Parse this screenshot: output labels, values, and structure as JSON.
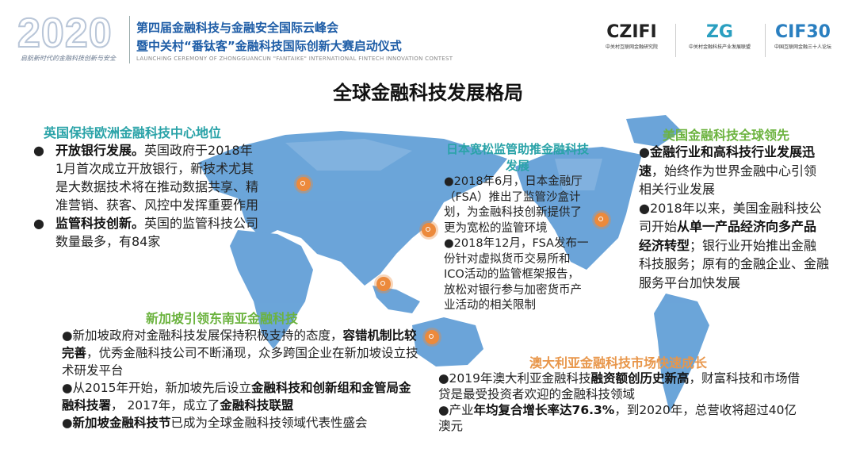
{
  "header": {
    "year_logo": "2020",
    "slogan": "启航新时代的金融科技创新与安全",
    "title_line1": "第四届金融科技与金融安全国际云峰会",
    "title_line2": "暨中关村“番钛客”金融科技国际创新大赛启动仪式",
    "subtitle_en": "LAUNCHING CEREMONY OF ZHONGGUANCUN \"FANTAIKE\" INTERNATIONAL FINTECH INNOVATION CONTEST",
    "logos": [
      {
        "mark": "CZIFI",
        "caption": "中关村互联网金融研究院"
      },
      {
        "mark": "ZG",
        "caption": "中关村金融科技产业发展联盟"
      },
      {
        "mark": "CIF30",
        "caption": "中国互联网金融三十人论坛"
      }
    ]
  },
  "main_title": "全球金融科技发展格局",
  "colors": {
    "teal": "#2aa3a8",
    "green": "#6cb33f",
    "orange": "#e8964a",
    "map": "#5b9bd5",
    "marker": "#ec8a3c",
    "header_blue": "#1d5ca6"
  },
  "sections": {
    "uk": {
      "title": "英国保持欧洲金融科技中心地位",
      "bullets": [
        [
          {
            "t": "开放银行发展。",
            "b": true
          },
          {
            "t": "英国政府于2018年1月首次成立开放银行，新技术尤其是大数据技术将在推动数据共享、精准营销、获客、风控中发挥重要作用",
            "b": false
          }
        ],
        [
          {
            "t": "监管科技创新。",
            "b": true
          },
          {
            "t": "英国的监管科技公司数量最多，有84家",
            "b": false
          }
        ]
      ]
    },
    "japan": {
      "title": "日本宽松监管助推金融科技发展",
      "bullets": [
        [
          {
            "t": "●2018年6月，日本金融厅（FSA）推出了监管沙盒计划，为金融科技创新提供了更为宽松的监管环境",
            "b": false
          }
        ],
        [
          {
            "t": "●2018年12月，FSA发布一份针对虚拟货币交易所和ICO活动的监管框架报告，放松对银行参与加密货币产业活动的相关限制",
            "b": false
          }
        ]
      ]
    },
    "usa": {
      "title": "美国金融科技全球领先",
      "bullets": [
        [
          {
            "t": "●",
            "b": false
          },
          {
            "t": "金融行业和高科技行业发展迅速",
            "b": true
          },
          {
            "t": "，始终作为世界金融中心引领相关行业发展",
            "b": false
          }
        ],
        [
          {
            "t": "●2018年以来，美国金融科技公司开始",
            "b": false
          },
          {
            "t": "从单一产品经济向多产品经济转型",
            "b": true
          },
          {
            "t": "；银行业开始推出金融科技服务；原有的金融企业、金融服务平台加快发展",
            "b": false
          }
        ]
      ]
    },
    "singapore": {
      "title": "新加坡引领东南亚金融科技",
      "bullets": [
        [
          {
            "t": "●新加坡政府对金融科技发展保持积极支持的态度，",
            "b": false
          },
          {
            "t": "容错机制比较完善",
            "b": true
          },
          {
            "t": "，优秀金融科技公司不断涌现，众多跨国企业在新加坡设立技术研发平台",
            "b": false
          }
        ],
        [
          {
            "t": "●从2015年开始，新加坡先后设立",
            "b": false
          },
          {
            "t": "金融科技和创新组和金管局金融科技署",
            "b": true
          },
          {
            "t": "， 2017年，成立了",
            "b": false
          },
          {
            "t": "金融科技联盟",
            "b": true
          }
        ],
        [
          {
            "t": "●",
            "b": false
          },
          {
            "t": "新加坡金融科技节",
            "b": true
          },
          {
            "t": "已成为全球金融科技领域代表性盛会",
            "b": false
          }
        ]
      ]
    },
    "australia": {
      "title": "澳大利亚金融科技市场快速成长",
      "bullets": [
        [
          {
            "t": "●2019年澳大利亚金融科技",
            "b": false
          },
          {
            "t": "融资额创历史新高",
            "b": true
          },
          {
            "t": "，财富科技和市场借贷是最受投资者欢迎的金融科技领域",
            "b": false
          }
        ],
        [
          {
            "t": "●产业",
            "b": false
          },
          {
            "t": "年均复合增长率达76.3%",
            "b": true
          },
          {
            "t": "，到2020年，总营收将超过40亿澳元",
            "b": false
          }
        ]
      ]
    }
  }
}
